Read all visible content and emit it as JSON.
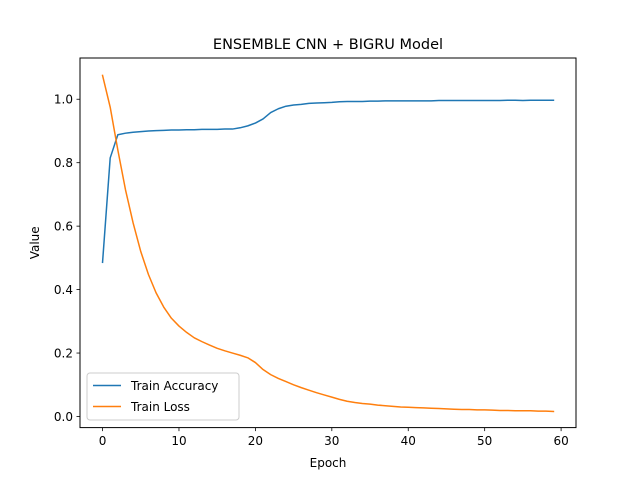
{
  "chart_data": {
    "type": "line",
    "title": "ENSEMBLE CNN + BIGRU Model",
    "xlabel": "Epoch",
    "ylabel": "Value",
    "xlim": [
      -2.95,
      61.95
    ],
    "ylim": [
      -0.035,
      1.13
    ],
    "xticks": [
      0,
      10,
      20,
      30,
      40,
      50,
      60
    ],
    "yticks": [
      0.0,
      0.2,
      0.4,
      0.6,
      0.8,
      1.0
    ],
    "ytick_labels": [
      "0.0",
      "0.2",
      "0.4",
      "0.6",
      "0.8",
      "1.0"
    ],
    "grid": false,
    "legend_position": "lower-left",
    "series": [
      {
        "name": "Train Accuracy",
        "color": "#1f77b4",
        "x": [
          0,
          1,
          2,
          3,
          4,
          5,
          6,
          7,
          8,
          9,
          10,
          11,
          12,
          13,
          14,
          15,
          16,
          17,
          18,
          19,
          20,
          21,
          22,
          23,
          24,
          25,
          26,
          27,
          28,
          29,
          30,
          31,
          32,
          33,
          34,
          35,
          36,
          37,
          38,
          39,
          40,
          41,
          42,
          43,
          44,
          45,
          46,
          47,
          48,
          49,
          50,
          51,
          52,
          53,
          54,
          55,
          56,
          57,
          58,
          59
        ],
        "values": [
          0.486,
          0.815,
          0.888,
          0.893,
          0.896,
          0.898,
          0.9,
          0.901,
          0.902,
          0.903,
          0.903,
          0.904,
          0.904,
          0.905,
          0.905,
          0.905,
          0.906,
          0.906,
          0.91,
          0.916,
          0.925,
          0.938,
          0.958,
          0.97,
          0.978,
          0.982,
          0.984,
          0.987,
          0.988,
          0.989,
          0.99,
          0.992,
          0.993,
          0.993,
          0.993,
          0.994,
          0.994,
          0.995,
          0.995,
          0.995,
          0.995,
          0.995,
          0.995,
          0.995,
          0.996,
          0.996,
          0.996,
          0.996,
          0.996,
          0.996,
          0.996,
          0.996,
          0.996,
          0.997,
          0.997,
          0.996,
          0.997,
          0.997,
          0.997,
          0.997
        ]
      },
      {
        "name": "Train Loss",
        "color": "#ff7f0e",
        "x": [
          0,
          1,
          2,
          3,
          4,
          5,
          6,
          7,
          8,
          9,
          10,
          11,
          12,
          13,
          14,
          15,
          16,
          17,
          18,
          19,
          20,
          21,
          22,
          23,
          24,
          25,
          26,
          27,
          28,
          29,
          30,
          31,
          32,
          33,
          34,
          35,
          36,
          37,
          38,
          39,
          40,
          41,
          42,
          43,
          44,
          45,
          46,
          47,
          48,
          49,
          50,
          51,
          52,
          53,
          54,
          55,
          56,
          57,
          58,
          59
        ],
        "values": [
          1.075,
          0.975,
          0.84,
          0.715,
          0.61,
          0.52,
          0.448,
          0.39,
          0.345,
          0.31,
          0.285,
          0.265,
          0.248,
          0.236,
          0.225,
          0.215,
          0.207,
          0.2,
          0.193,
          0.185,
          0.17,
          0.148,
          0.132,
          0.12,
          0.11,
          0.1,
          0.091,
          0.083,
          0.075,
          0.068,
          0.061,
          0.054,
          0.048,
          0.044,
          0.041,
          0.039,
          0.036,
          0.034,
          0.032,
          0.03,
          0.029,
          0.028,
          0.027,
          0.026,
          0.025,
          0.024,
          0.023,
          0.022,
          0.022,
          0.021,
          0.021,
          0.02,
          0.019,
          0.019,
          0.018,
          0.018,
          0.018,
          0.017,
          0.017,
          0.016
        ]
      }
    ]
  }
}
